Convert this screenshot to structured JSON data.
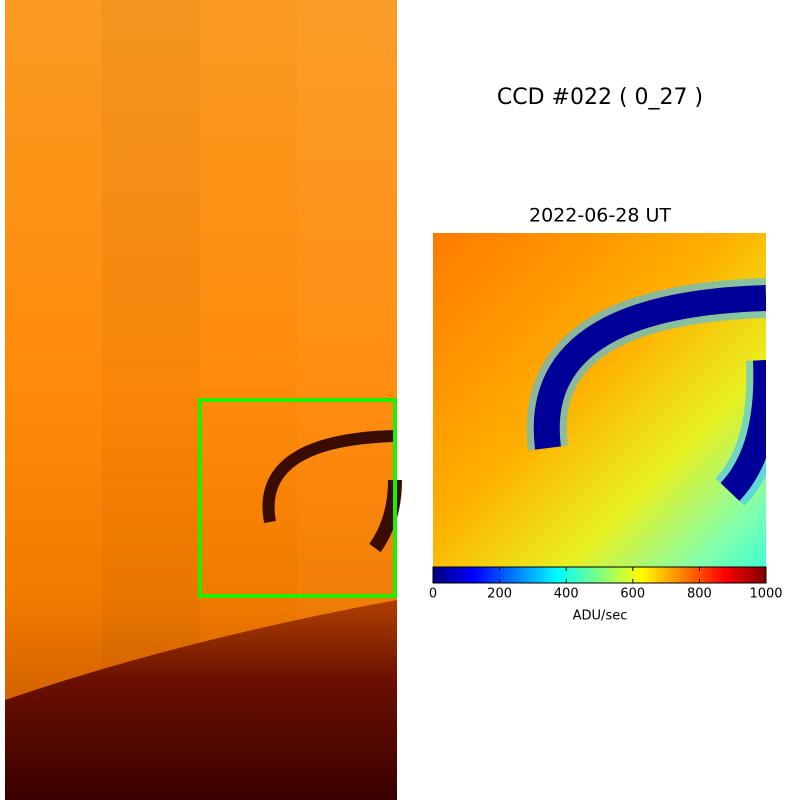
{
  "title": "CCD #022 ( 0_27 )",
  "zoom_title": "2022-06-28 UT",
  "colorbar": {
    "label": "ADU/sec",
    "lim": [
      0,
      1000
    ],
    "ticks": [
      0,
      200,
      400,
      600,
      800,
      1000
    ],
    "colormap": "jet"
  }
}
